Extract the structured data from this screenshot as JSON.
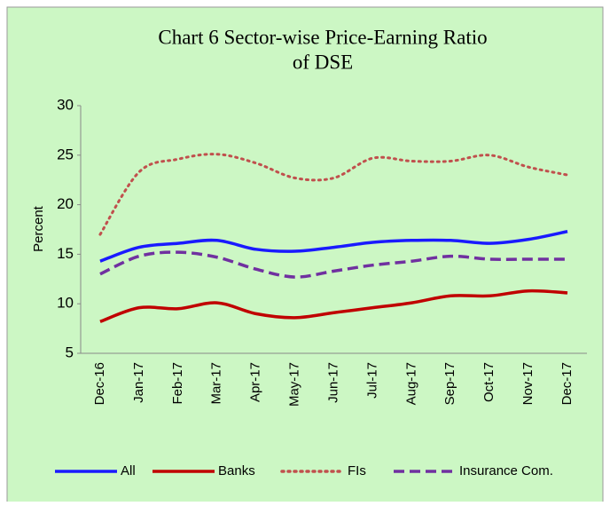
{
  "chart_data": {
    "type": "line",
    "title": [
      "Chart 6 Sector-wise Price-Earning Ratio",
      "of DSE"
    ],
    "y_label": "Percent",
    "categories": [
      "Dec-16",
      "Jan-17",
      "Feb-17",
      "Mar-17",
      "Apr-17",
      "May-17",
      "Jun-17",
      "Jul-17",
      "Aug-17",
      "Sep-17",
      "Oct-17",
      "Nov-17",
      "Dec-17"
    ],
    "series": [
      {
        "name": "All",
        "color": "#1a1aff",
        "dash": "solid",
        "values": [
          14.3,
          15.7,
          16.1,
          16.4,
          15.5,
          15.3,
          15.7,
          16.2,
          16.4,
          16.4,
          16.1,
          16.5,
          17.3
        ]
      },
      {
        "name": "Banks",
        "color": "#c00000",
        "dash": "solid",
        "values": [
          8.2,
          9.6,
          9.5,
          10.1,
          9.0,
          8.6,
          9.1,
          9.6,
          10.1,
          10.8,
          10.8,
          11.3,
          11.1
        ]
      },
      {
        "name": "FIs",
        "color": "#c0504d",
        "dash": "dotted",
        "values": [
          17.0,
          23.3,
          24.6,
          25.1,
          24.2,
          22.7,
          22.7,
          24.7,
          24.4,
          24.4,
          25.0,
          23.8,
          23.0
        ]
      },
      {
        "name": "Insurance Com.",
        "color": "#7030a0",
        "dash": "dashed",
        "values": [
          13.0,
          14.8,
          15.2,
          14.7,
          13.5,
          12.7,
          13.3,
          13.9,
          14.3,
          14.8,
          14.5,
          14.5,
          14.5
        ]
      }
    ],
    "ylim": [
      5,
      30
    ],
    "yticks": [
      5,
      10,
      15,
      20,
      25,
      30
    ],
    "grid": false,
    "legend": "bottom"
  }
}
